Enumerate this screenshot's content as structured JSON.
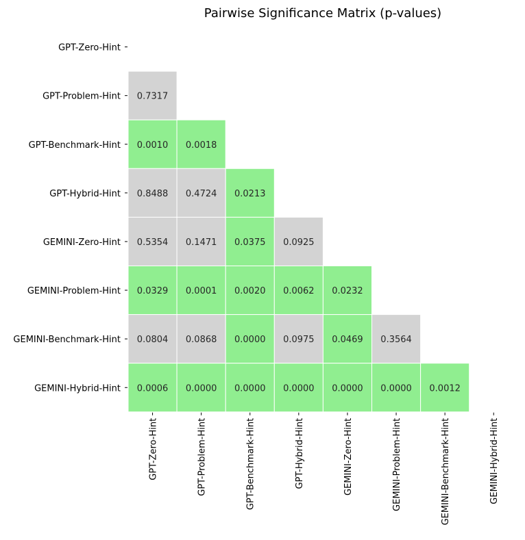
{
  "chart_data": {
    "type": "heatmap",
    "title": "Pairwise Significance Matrix (p-values)",
    "xlabel": "",
    "ylabel": "",
    "grid": false,
    "legend": "none",
    "mask": "upper-triangle-and-diagonal",
    "significance_threshold": 0.05,
    "colors": {
      "significant": "#90ee90",
      "not_significant": "#d3d3d3",
      "cell_text": "#262626",
      "cell_border": "#ffffff",
      "axis_text": "#000000"
    },
    "x_labels": [
      "GPT-Zero-Hint",
      "GPT-Problem-Hint",
      "GPT-Benchmark-Hint",
      "GPT-Hybrid-Hint",
      "GEMINI-Zero-Hint",
      "GEMINI-Problem-Hint",
      "GEMINI-Benchmark-Hint",
      "GEMINI-Hybrid-Hint"
    ],
    "y_labels": [
      "GPT-Zero-Hint",
      "GPT-Problem-Hint",
      "GPT-Benchmark-Hint",
      "GPT-Hybrid-Hint",
      "GEMINI-Zero-Hint",
      "GEMINI-Problem-Hint",
      "GEMINI-Benchmark-Hint",
      "GEMINI-Hybrid-Hint"
    ],
    "values": [
      [
        null,
        null,
        null,
        null,
        null,
        null,
        null,
        null
      ],
      [
        "0.7317",
        null,
        null,
        null,
        null,
        null,
        null,
        null
      ],
      [
        "0.0010",
        "0.0018",
        null,
        null,
        null,
        null,
        null,
        null
      ],
      [
        "0.8488",
        "0.4724",
        "0.0213",
        null,
        null,
        null,
        null,
        null
      ],
      [
        "0.5354",
        "0.1471",
        "0.0375",
        "0.0925",
        null,
        null,
        null,
        null
      ],
      [
        "0.0329",
        "0.0001",
        "0.0020",
        "0.0062",
        "0.0232",
        null,
        null,
        null
      ],
      [
        "0.0804",
        "0.0868",
        "0.0000",
        "0.0975",
        "0.0469",
        "0.3564",
        null,
        null
      ],
      [
        "0.0006",
        "0.0000",
        "0.0000",
        "0.0000",
        "0.0000",
        "0.0000",
        "0.0012",
        null
      ]
    ]
  }
}
